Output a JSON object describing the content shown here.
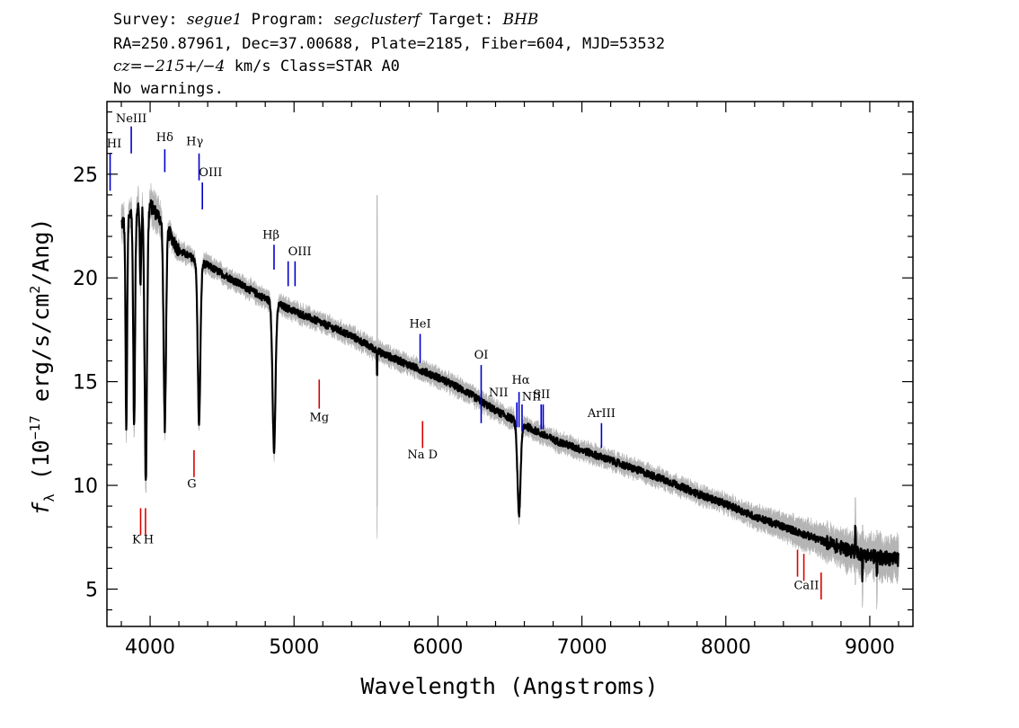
{
  "header": {
    "line1": [
      {
        "t": "Survey: ",
        "i": false
      },
      {
        "t": "segue1",
        "i": true
      },
      {
        "t": " Program: ",
        "i": false
      },
      {
        "t": "segclusterf",
        "i": true
      },
      {
        "t": " Target: ",
        "i": false
      },
      {
        "t": "BHB",
        "i": true
      }
    ],
    "line2": "RA=250.87961, Dec=37.00688, Plate=2185, Fiber=604, MJD=53532",
    "line3": [
      {
        "t": "cz=−215+/−4",
        "i": true
      },
      {
        "t": " km/s Class=STAR A0",
        "i": false
      }
    ],
    "line4": "No warnings."
  },
  "chart_data": {
    "type": "line",
    "xlabel": "Wavelength (Angstroms)",
    "ylabel": "f_λ (10^-17 erg/s/cm^2/Ang)",
    "ylabel_parts": {
      "f": "f",
      "sub": "λ",
      "a": " (10",
      "exp1": "−17",
      "b": " erg/s/cm",
      "exp2": "2",
      "c": "/Ang)"
    },
    "xlim": [
      3700,
      9300
    ],
    "ylim": [
      3.2,
      28.5
    ],
    "xticks": [
      4000,
      5000,
      6000,
      7000,
      8000,
      9000
    ],
    "yticks": [
      5,
      10,
      15,
      20,
      25
    ],
    "series_color": "#000000",
    "error_band_color": "#b4b4b4",
    "emission_color": "#0000cc",
    "absorption_color": "#dd0000",
    "continuum": [
      [
        3800,
        22.6
      ],
      [
        3900,
        23.4
      ],
      [
        4000,
        23.5
      ],
      [
        4100,
        22.6
      ],
      [
        4200,
        21.3
      ],
      [
        4400,
        20.6
      ],
      [
        4600,
        19.8
      ],
      [
        4800,
        19.0
      ],
      [
        5000,
        18.4
      ],
      [
        5200,
        17.8
      ],
      [
        5400,
        17.2
      ],
      [
        5600,
        16.4
      ],
      [
        5800,
        15.8
      ],
      [
        6000,
        15.2
      ],
      [
        6200,
        14.5
      ],
      [
        6400,
        13.6
      ],
      [
        6600,
        12.9
      ],
      [
        6800,
        12.2
      ],
      [
        7000,
        11.7
      ],
      [
        7200,
        11.2
      ],
      [
        7400,
        10.7
      ],
      [
        7600,
        10.2
      ],
      [
        7800,
        9.6
      ],
      [
        8000,
        9.1
      ],
      [
        8200,
        8.5
      ],
      [
        8400,
        8.0
      ],
      [
        8600,
        7.5
      ],
      [
        8800,
        7.0
      ],
      [
        9000,
        6.6
      ],
      [
        9200,
        6.4
      ]
    ],
    "absorption_features": [
      {
        "x": 3835,
        "depth": 10.5,
        "width": 6
      },
      {
        "x": 3889,
        "depth": 10.8,
        "width": 7
      },
      {
        "x": 3933,
        "depth": 4.0,
        "width": 5
      },
      {
        "x": 3970,
        "depth": 13.5,
        "width": 9
      },
      {
        "x": 4102,
        "depth": 10.0,
        "width": 9
      },
      {
        "x": 4340,
        "depth": 8.0,
        "width": 10
      },
      {
        "x": 4861,
        "depth": 7.4,
        "width": 11
      },
      {
        "x": 6563,
        "depth": 4.5,
        "width": 12
      }
    ],
    "spikes": [
      {
        "x": 5577,
        "dy": -1.0,
        "err": 7.5
      },
      {
        "x": 8900,
        "dy": 1.3,
        "err": 1.6
      },
      {
        "x": 8950,
        "dy": -1.0,
        "err": 1.4
      },
      {
        "x": 9050,
        "dy": -0.9,
        "err": 1.3
      }
    ],
    "emission_lines": [
      {
        "label": "HI",
        "x": 3722,
        "y0": 24.2,
        "y1": 26.0,
        "lx": 3722,
        "ly": 26.3,
        "anchor": "middle"
      },
      {
        "label": "NeIII",
        "x": 3869,
        "y0": 26.0,
        "y1": 27.3,
        "lx": 3869,
        "ly": 27.5,
        "anchor": "middle"
      },
      {
        "label": "Hδ",
        "x": 4102,
        "y0": 25.1,
        "y1": 26.2,
        "lx": 4102,
        "ly": 26.6,
        "anchor": "middle"
      },
      {
        "label": "Hγ",
        "x": 4340,
        "y0": 24.7,
        "y1": 26.0,
        "lx": 4310,
        "ly": 26.4,
        "anchor": "middle"
      },
      {
        "label": "OIII",
        "x": 4363,
        "y0": 23.3,
        "y1": 24.6,
        "lx": 4420,
        "ly": 24.9,
        "anchor": "middle"
      },
      {
        "label": "Hβ",
        "x": 4861,
        "y0": 20.4,
        "y1": 21.6,
        "lx": 4840,
        "ly": 21.9,
        "anchor": "middle"
      },
      {
        "label": "OIII",
        "x": 4959,
        "y0": 19.6,
        "y1": 20.8,
        "lx": 5040,
        "ly": 21.1,
        "anchor": "middle"
      },
      {
        "label": "OIII",
        "x": 5007,
        "y0": 19.6,
        "y1": 20.8,
        "lx": "",
        "ly": "",
        "anchor": "middle"
      },
      {
        "label": "HeI",
        "x": 5876,
        "y0": 15.9,
        "y1": 17.3,
        "lx": 5876,
        "ly": 17.6,
        "anchor": "middle"
      },
      {
        "label": "OI",
        "x": 6300,
        "y0": 13.0,
        "y1": 15.8,
        "lx": 6300,
        "ly": 16.1,
        "anchor": "middle"
      },
      {
        "label": "NII",
        "x": 6548,
        "y0": 12.8,
        "y1": 14.0,
        "lx": 6420,
        "ly": 14.3,
        "anchor": "middle"
      },
      {
        "label": "Hα",
        "x": 6563,
        "y0": 12.8,
        "y1": 14.5,
        "lx": 6575,
        "ly": 14.9,
        "anchor": "middle"
      },
      {
        "label": "NII",
        "x": 6584,
        "y0": 12.6,
        "y1": 13.9,
        "lx": 6650,
        "ly": 14.1,
        "anchor": "middle"
      },
      {
        "label": "SII",
        "x": 6717,
        "y0": 12.7,
        "y1": 13.9,
        "lx": 6720,
        "ly": 14.2,
        "anchor": "middle"
      },
      {
        "label": "SII",
        "x": 6731,
        "y0": 12.7,
        "y1": 13.9,
        "lx": "",
        "ly": "",
        "anchor": "middle"
      },
      {
        "label": "ArIII",
        "x": 7136,
        "y0": 11.8,
        "y1": 13.0,
        "lx": 7136,
        "ly": 13.3,
        "anchor": "middle"
      }
    ],
    "absorption_lines": [
      {
        "label": "K",
        "x": 3934,
        "y0": 7.6,
        "y1": 8.9,
        "lx": 3905,
        "ly": 7.2,
        "anchor": "middle"
      },
      {
        "label": "H",
        "x": 3968,
        "y0": 7.6,
        "y1": 8.9,
        "lx": 3990,
        "ly": 7.2,
        "anchor": "middle"
      },
      {
        "label": "G",
        "x": 4305,
        "y0": 10.4,
        "y1": 11.7,
        "lx": 4290,
        "ly": 9.9,
        "anchor": "middle"
      },
      {
        "label": "Mg",
        "x": 5175,
        "y0": 13.7,
        "y1": 15.1,
        "lx": 5175,
        "ly": 13.1,
        "anchor": "middle"
      },
      {
        "label": "Na D",
        "x": 5893,
        "y0": 11.8,
        "y1": 13.1,
        "lx": 5893,
        "ly": 11.3,
        "anchor": "middle"
      },
      {
        "label": "CaII",
        "x": 8498,
        "y0": 5.6,
        "y1": 6.9,
        "lx": 8560,
        "ly": 5.0,
        "anchor": "middle"
      },
      {
        "label": "CaII",
        "x": 8542,
        "y0": 5.4,
        "y1": 6.7,
        "lx": "",
        "ly": "",
        "anchor": "middle"
      },
      {
        "label": "CaII",
        "x": 8662,
        "y0": 4.5,
        "y1": 5.8,
        "lx": "",
        "ly": "",
        "anchor": "middle"
      }
    ]
  }
}
